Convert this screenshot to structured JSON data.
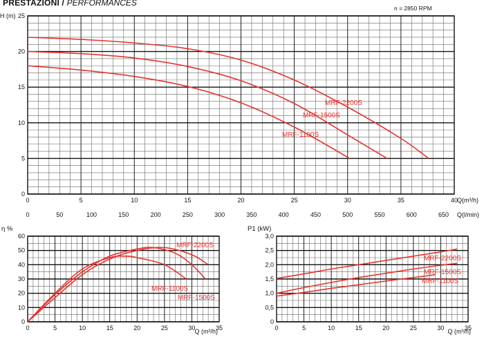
{
  "header": {
    "title": "PRESTAZIONI / ",
    "subtitle": "PERFORMANCES",
    "rpm": "n = 2850 RPM"
  },
  "chart_data": [
    {
      "id": "head",
      "type": "line",
      "ylabel": "H (m)",
      "xlabel": "Q(m³/h)",
      "xlabel2": "Q(l/min)",
      "xlim": [
        0,
        40
      ],
      "ylim": [
        0,
        25
      ],
      "x_ticks": [
        0,
        5,
        10,
        15,
        20,
        25,
        30,
        35,
        40
      ],
      "y_ticks": [
        0,
        5,
        10,
        15,
        20,
        25
      ],
      "x2_ticks": [
        0,
        50,
        100,
        150,
        200,
        250,
        300,
        350,
        400,
        450,
        500,
        550,
        600,
        650
      ],
      "grid": true,
      "series": [
        {
          "name": "MRF-2200S",
          "x": [
            0,
            5,
            10,
            15,
            20,
            25,
            30,
            35,
            37.6
          ],
          "y": [
            22,
            21.7,
            21.2,
            20.4,
            18.8,
            16,
            12.2,
            7.8,
            5
          ]
        },
        {
          "name": "MRF-1500S",
          "x": [
            0,
            5,
            10,
            15,
            20,
            25,
            30,
            33.7
          ],
          "y": [
            20,
            19.7,
            19.1,
            17.9,
            15.9,
            12.7,
            8.3,
            5
          ]
        },
        {
          "name": "MRF-1100S",
          "x": [
            0,
            5,
            10,
            15,
            20,
            25,
            30.2
          ],
          "y": [
            18,
            17.4,
            16.5,
            15.1,
            12.8,
            9.4,
            5
          ]
        }
      ]
    },
    {
      "id": "efficiency",
      "type": "line",
      "ylabel": "η %",
      "xlabel": "Q (m³/h)",
      "xlim": [
        0,
        35
      ],
      "ylim": [
        0,
        60
      ],
      "x_ticks": [
        0,
        5,
        10,
        15,
        20,
        25,
        30,
        35
      ],
      "y_ticks": [
        0,
        10,
        20,
        30,
        40,
        50,
        60
      ],
      "grid": true,
      "series": [
        {
          "name": "MRF-2200S",
          "x": [
            0,
            5,
            10,
            15,
            20,
            25,
            30,
            33
          ],
          "y": [
            0,
            17,
            33,
            44,
            50,
            52,
            47,
            40
          ]
        },
        {
          "name": "MRF-1500S",
          "x": [
            0,
            5,
            10,
            15,
            20,
            23,
            27,
            30,
            32.5
          ],
          "y": [
            0,
            19,
            35,
            46,
            51,
            52,
            48,
            40,
            30
          ]
        },
        {
          "name": "MRF-1100S",
          "x": [
            0,
            5,
            10,
            15,
            18,
            20,
            25,
            29
          ],
          "y": [
            0,
            20,
            37,
            45,
            46,
            45,
            40,
            30
          ]
        }
      ]
    },
    {
      "id": "power",
      "type": "line",
      "ylabel": "P1 (kW)",
      "xlabel": "Q (m³/h)",
      "xlim": [
        0,
        35
      ],
      "ylim": [
        0,
        3
      ],
      "x_ticks": [
        0,
        5,
        10,
        15,
        20,
        25,
        30,
        35
      ],
      "y_ticks": [
        "0",
        "0,5",
        "1,0",
        "1,5",
        "2,0",
        "2,5",
        "3,0"
      ],
      "grid": true,
      "series": [
        {
          "name": "MRF-2200S",
          "x": [
            0,
            5,
            10,
            15,
            20,
            25,
            30,
            33
          ],
          "y": [
            1.52,
            1.68,
            1.85,
            2.0,
            2.15,
            2.3,
            2.45,
            2.55
          ]
        },
        {
          "name": "MRF-1500S",
          "x": [
            0,
            5,
            10,
            15,
            20,
            25,
            30,
            33
          ],
          "y": [
            1.0,
            1.2,
            1.38,
            1.55,
            1.7,
            1.85,
            1.98,
            2.05
          ]
        },
        {
          "name": "MRF-1100S",
          "x": [
            0,
            5,
            10,
            15,
            20,
            25,
            29
          ],
          "y": [
            0.9,
            1.03,
            1.17,
            1.3,
            1.43,
            1.55,
            1.65
          ]
        }
      ]
    }
  ],
  "colors": {
    "curve": "#e8322c",
    "grid_major": "#111111",
    "grid_minor": "#666666",
    "label": "#e8322c"
  }
}
